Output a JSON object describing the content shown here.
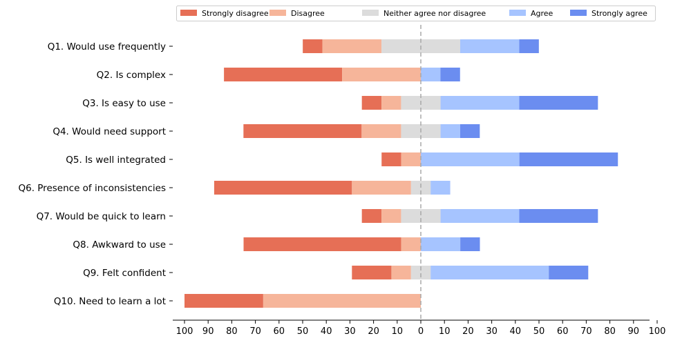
{
  "chart_data": {
    "type": "bar",
    "orientation": "horizontal",
    "stacked": "diverging",
    "categories": [
      "Q1. Would use frequently",
      "Q2. Is complex",
      "Q3. Is easy to use",
      "Q4. Would need support",
      "Q5. Is well integrated",
      "Q6. Presence of inconsistencies",
      "Q7. Would be quick to learn",
      "Q8. Awkward to use",
      "Q9. Felt confident",
      "Q10. Need to learn a lot"
    ],
    "series": [
      {
        "name": "Strongly disagree",
        "color": "#e66f56",
        "values": [
          8.3,
          50,
          8.3,
          50,
          8.3,
          58.3,
          8.3,
          66.7,
          16.7,
          33.3
        ]
      },
      {
        "name": "Disagree",
        "color": "#f6b59a",
        "values": [
          25,
          33.3,
          8.3,
          16.7,
          8.3,
          25,
          8.3,
          8.3,
          8.3,
          66.7
        ]
      },
      {
        "name": "Neither agree nor disagree",
        "color": "#dcdcdc",
        "values": [
          33.3,
          0,
          16.7,
          16.7,
          0,
          8.3,
          16.7,
          0,
          8.3,
          0
        ]
      },
      {
        "name": "Agree",
        "color": "#a6c4ff",
        "values": [
          25,
          8.3,
          33.3,
          8.3,
          41.7,
          8.3,
          33.3,
          16.7,
          50,
          0
        ]
      },
      {
        "name": "Strongly agree",
        "color": "#6b8df0",
        "values": [
          8.3,
          8.3,
          33.3,
          8.3,
          41.7,
          0,
          33.3,
          8.3,
          16.7,
          0
        ]
      }
    ],
    "xticks": [
      "100",
      "90",
      "80",
      "70",
      "60",
      "50",
      "40",
      "30",
      "20",
      "10",
      "0",
      "10",
      "20",
      "30",
      "40",
      "50",
      "60",
      "70",
      "80",
      "90",
      "100"
    ],
    "xlim": [
      -100,
      100
    ],
    "title": "",
    "xlabel": "",
    "ylabel": "",
    "center_line": "dashed",
    "legend_position": "top",
    "grid": false
  }
}
